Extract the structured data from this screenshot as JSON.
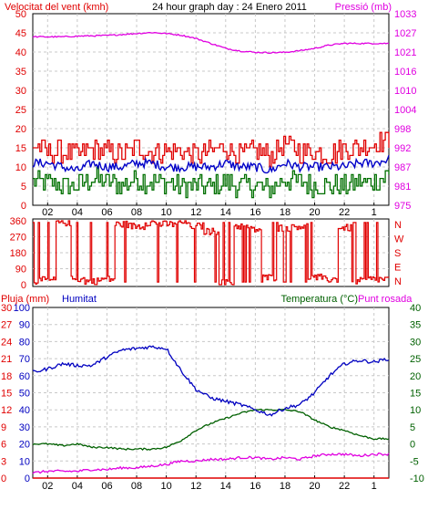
{
  "colors": {
    "wind": "#e00000",
    "gust_wind": "#e00000",
    "avg_wind": "#0000c8",
    "low_wind": "#007000",
    "pressure": "#e000e0",
    "direction": "#e00000",
    "humidity": "#0000c0",
    "temperature": "#006000",
    "dewpoint": "#e000e0",
    "rain": "#e00000",
    "grid": "#c8c8c8",
    "frame": "#000000"
  },
  "title": "24 hour graph day : 24 Enero 2011",
  "top": {
    "left_label": "Velocitat del vent (kmh)",
    "right_label": "Pressió (mb)",
    "left_ticks": [
      "0",
      "5",
      "10",
      "15",
      "20",
      "25",
      "30",
      "35",
      "40",
      "45",
      "50"
    ],
    "right_ticks": [
      "975",
      "981",
      "987",
      "992",
      "998",
      "1004",
      "1010",
      "1016",
      "1021",
      "1027",
      "1033"
    ]
  },
  "mid": {
    "left_ticks": [
      "360",
      "270",
      "180",
      "90",
      "0"
    ],
    "right_ticks": [
      "N",
      "W",
      "S",
      "E",
      "N"
    ]
  },
  "bottom": {
    "rain_label": "Pluja (mm)",
    "humidity_label": "Humitat",
    "temperature_label": "Temperatura (°C)",
    "dewpoint_label": "Punt rosada",
    "left_ticks": [
      {
        "rain": "0",
        "hum": "0"
      },
      {
        "rain": "3",
        "hum": "10"
      },
      {
        "rain": "6",
        "hum": "20"
      },
      {
        "rain": "9",
        "hum": "30"
      },
      {
        "rain": "12",
        "hum": "40"
      },
      {
        "rain": "15",
        "hum": "50"
      },
      {
        "rain": "18",
        "hum": "60"
      },
      {
        "rain": "21",
        "hum": "70"
      },
      {
        "rain": "24",
        "hum": "80"
      },
      {
        "rain": "27",
        "hum": "90"
      },
      {
        "rain": "30",
        "hum": "100"
      }
    ],
    "right_ticks": [
      "-10",
      "-5",
      "0",
      "5",
      "10",
      "15",
      "20",
      "25",
      "30",
      "35",
      "40"
    ]
  },
  "x_ticks": [
    "02",
    "04",
    "06",
    "08",
    "10",
    "12",
    "14",
    "16",
    "18",
    "20",
    "22",
    "1"
  ],
  "chart_data": [
    {
      "type": "line",
      "title": "24 hour graph day : 24 Enero 2011",
      "x": [
        0,
        1,
        2,
        3,
        4,
        5,
        6,
        7,
        8,
        9,
        10,
        11,
        12,
        13,
        14,
        15,
        16,
        17,
        18,
        19,
        20,
        21,
        22,
        23,
        24
      ],
      "ylabel": "Velocitat del vent (kmh)",
      "ylim": [
        0,
        50
      ],
      "y2label": "Pressió (mb)",
      "y2lim": [
        975,
        1033
      ],
      "series": [
        {
          "axis": "left",
          "values": [
            16,
            14,
            14,
            13,
            15,
            14,
            13,
            15,
            14,
            14,
            14,
            13,
            14,
            15,
            13,
            14,
            13,
            16,
            14,
            14,
            13,
            15,
            15,
            16,
            17
          ]
        },
        {
          "axis": "left",
          "values": [
            11,
            11,
            10,
            9,
            11,
            10,
            10,
            11,
            11,
            10,
            10,
            10,
            10,
            11,
            10,
            10,
            9,
            11,
            10,
            10,
            10,
            10,
            11,
            11,
            12
          ]
        },
        {
          "axis": "left",
          "values": [
            6,
            6,
            5,
            5,
            7,
            6,
            5,
            7,
            6,
            6,
            5,
            5,
            5,
            6,
            5,
            5,
            4,
            7,
            6,
            5,
            5,
            5,
            6,
            6,
            8
          ]
        },
        {
          "axis": "right",
          "values": [
            1026,
            1026,
            1026,
            1026.2,
            1026.3,
            1026.4,
            1026.7,
            1027,
            1027.3,
            1027,
            1026.5,
            1025.5,
            1024,
            1022.5,
            1021.7,
            1021.3,
            1021.2,
            1021.3,
            1021.8,
            1022.5,
            1023.5,
            1024,
            1024,
            1024,
            1024
          ]
        }
      ]
    },
    {
      "type": "line",
      "x": [
        0,
        1,
        2,
        3,
        4,
        5,
        6,
        7,
        8,
        9,
        10,
        11,
        12,
        13,
        14,
        15,
        16,
        17,
        18,
        19,
        20,
        21,
        22,
        23,
        24
      ],
      "ylim": [
        0,
        360
      ],
      "series": [
        {
          "values": [
            20,
            25,
            350,
            30,
            20,
            30,
            340,
            330,
            350,
            340,
            350,
            330,
            300,
            10,
            330,
            310,
            40,
            320,
            330,
            40,
            30,
            320,
            20,
            30,
            30
          ]
        }
      ]
    },
    {
      "type": "line",
      "x": [
        0,
        1,
        2,
        3,
        4,
        5,
        6,
        7,
        8,
        9,
        10,
        11,
        12,
        13,
        14,
        15,
        16,
        17,
        18,
        19,
        20,
        21,
        22,
        23,
        24
      ],
      "ylabel": "Humitat",
      "ylim": [
        0,
        100
      ],
      "y2label": "Temperatura (°C)",
      "y2lim": [
        -10,
        40
      ],
      "series": [
        {
          "axis": "left",
          "values": [
            62,
            64,
            67,
            66,
            66,
            71,
            75,
            76,
            77,
            76,
            63,
            52,
            47,
            45,
            43,
            40,
            37,
            41,
            43,
            50,
            60,
            67,
            69,
            68,
            70
          ]
        },
        {
          "axis": "right",
          "values": [
            0,
            0,
            -0.5,
            0,
            -1,
            -1,
            -1.5,
            -1.5,
            -1.5,
            -1,
            1,
            4,
            6,
            7.5,
            9,
            10,
            10,
            10,
            9.5,
            7,
            5,
            4,
            2.5,
            1.5,
            1.5
          ]
        },
        {
          "axis": "right",
          "values": [
            -8.5,
            -8,
            -8,
            -8,
            -7.5,
            -7.5,
            -7,
            -7,
            -6.5,
            -6,
            -5,
            -5,
            -4.5,
            -4.5,
            -4,
            -4,
            -4.5,
            -4,
            -4.5,
            -3.5,
            -3,
            -3,
            -3.5,
            -3,
            -3
          ]
        },
        {
          "axis": "left",
          "values": [
            0,
            0,
            0,
            0,
            0,
            0,
            0,
            0,
            0,
            0,
            0,
            0,
            0,
            0,
            0,
            0,
            0,
            0,
            0,
            0,
            0,
            0,
            0,
            0,
            0
          ]
        }
      ]
    }
  ]
}
